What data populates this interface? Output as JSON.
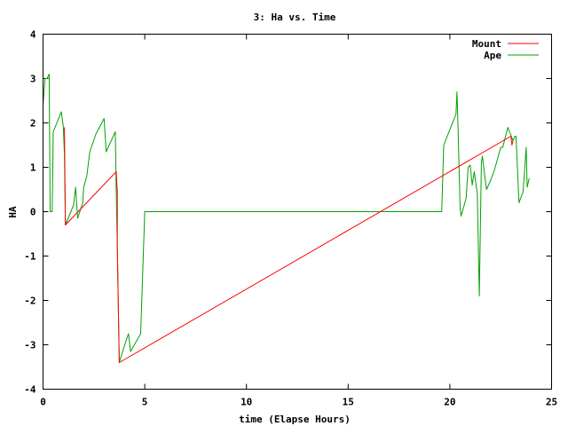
{
  "chart_data": {
    "type": "line",
    "title": "3: Ha vs. Time",
    "xlabel": "time (Elapse Hours)",
    "ylabel": "HA",
    "xlim": [
      0,
      25
    ],
    "ylim": [
      -4,
      4
    ],
    "xticks": [
      0,
      5,
      10,
      15,
      20,
      25
    ],
    "yticks": [
      -4,
      -3,
      -2,
      -1,
      0,
      1,
      2,
      3,
      4
    ],
    "grid": false,
    "legend_position": "top-right",
    "series": [
      {
        "name": "Mount",
        "color": "#ff0000",
        "points": [
          [
            1.05,
            1.9
          ],
          [
            1.1,
            -0.3
          ],
          [
            3.6,
            0.9
          ],
          [
            3.65,
            0.45
          ],
          [
            3.65,
            -0.8
          ],
          [
            3.7,
            -2.1
          ],
          [
            3.75,
            -3.4
          ],
          [
            23.0,
            1.7
          ],
          [
            23.05,
            1.5
          ],
          [
            23.1,
            1.6
          ]
        ]
      },
      {
        "name": "Ape",
        "color": "#00a000",
        "points": [
          [
            0.0,
            2.4
          ],
          [
            0.1,
            3.0
          ],
          [
            0.2,
            3.0
          ],
          [
            0.3,
            3.1
          ],
          [
            0.35,
            0.0
          ],
          [
            0.45,
            0.0
          ],
          [
            0.5,
            1.8
          ],
          [
            0.9,
            2.25
          ],
          [
            1.0,
            1.9
          ],
          [
            1.05,
            1.3
          ],
          [
            1.1,
            -0.3
          ],
          [
            1.5,
            0.15
          ],
          [
            1.6,
            0.55
          ],
          [
            1.7,
            -0.15
          ],
          [
            1.95,
            0.2
          ],
          [
            2.0,
            0.55
          ],
          [
            2.15,
            0.8
          ],
          [
            2.3,
            1.35
          ],
          [
            2.6,
            1.75
          ],
          [
            3.0,
            2.1
          ],
          [
            3.1,
            1.35
          ],
          [
            3.55,
            1.8
          ],
          [
            3.6,
            0.45
          ],
          [
            3.65,
            -0.8
          ],
          [
            3.7,
            -2.1
          ],
          [
            3.75,
            -3.4
          ],
          [
            4.05,
            -2.95
          ],
          [
            4.2,
            -2.75
          ],
          [
            4.3,
            -3.15
          ],
          [
            4.8,
            -2.75
          ],
          [
            5.0,
            0.0
          ],
          [
            19.6,
            0.0
          ],
          [
            19.7,
            1.5
          ],
          [
            20.3,
            2.2
          ],
          [
            20.35,
            2.7
          ],
          [
            20.4,
            1.9
          ],
          [
            20.5,
            0.1
          ],
          [
            20.55,
            -0.1
          ],
          [
            20.8,
            0.3
          ],
          [
            20.9,
            1.0
          ],
          [
            21.0,
            1.05
          ],
          [
            21.1,
            0.6
          ],
          [
            21.2,
            0.9
          ],
          [
            21.35,
            0.4
          ],
          [
            21.45,
            -1.9
          ],
          [
            21.55,
            1.1
          ],
          [
            21.6,
            1.25
          ],
          [
            21.7,
            0.85
          ],
          [
            21.8,
            0.5
          ],
          [
            22.0,
            0.7
          ],
          [
            22.2,
            0.95
          ],
          [
            22.5,
            1.45
          ],
          [
            22.6,
            1.45
          ],
          [
            22.85,
            1.9
          ],
          [
            23.1,
            1.6
          ],
          [
            23.2,
            1.7
          ],
          [
            23.25,
            1.7
          ],
          [
            23.4,
            0.2
          ],
          [
            23.6,
            0.45
          ],
          [
            23.75,
            1.45
          ],
          [
            23.8,
            0.55
          ],
          [
            23.9,
            0.75
          ]
        ]
      }
    ]
  }
}
